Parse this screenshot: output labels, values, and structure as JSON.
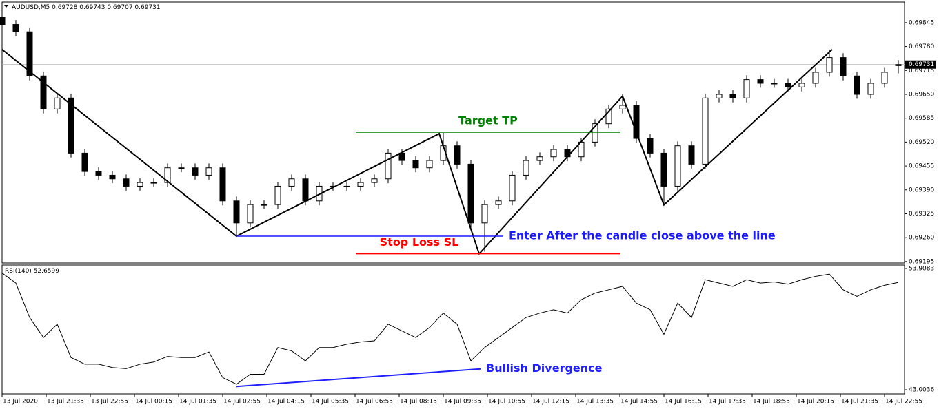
{
  "chart_data": [
    {
      "type": "candlestick",
      "title": "AUDUSD,M5",
      "x": [
        0,
        5,
        10,
        15,
        20,
        25,
        30,
        35,
        40,
        45,
        50,
        55,
        60,
        65,
        70,
        75,
        80,
        85,
        90,
        95,
        100,
        105,
        110,
        115,
        120,
        125,
        130,
        135,
        140,
        145,
        150,
        155,
        160,
        165,
        170,
        175,
        180,
        185,
        190,
        195,
        200,
        205,
        210,
        215,
        220,
        225,
        230,
        235,
        240,
        245,
        250,
        255,
        260,
        265,
        270,
        275,
        280,
        285,
        290,
        295,
        300,
        305,
        310,
        315,
        320,
        325
      ],
      "open": [
        0.6986,
        0.6984,
        0.6982,
        0.697,
        0.6961,
        0.6964,
        0.6949,
        0.6944,
        0.6943,
        0.6942,
        0.694,
        0.6941,
        0.6941,
        0.6945,
        0.6945,
        0.6943,
        0.6945,
        0.6936,
        0.693,
        0.6935,
        0.6935,
        0.694,
        0.6942,
        0.6936,
        0.694,
        0.694,
        0.694,
        0.6941,
        0.6942,
        0.6949,
        0.6947,
        0.6945,
        0.6947,
        0.6951,
        0.6946,
        0.693,
        0.6935,
        0.6936,
        0.6943,
        0.6947,
        0.6948,
        0.695,
        0.6948,
        0.6952,
        0.6957,
        0.6961,
        0.6962,
        0.6953,
        0.6949,
        0.694,
        0.6951,
        0.6946,
        0.6964,
        0.6965,
        0.6964,
        0.6969,
        0.6968,
        0.6968,
        0.6967,
        0.6968,
        0.6971,
        0.6975,
        0.697,
        0.6965,
        0.6968,
        0.69728
      ],
      "high": [
        0.69872,
        0.69852,
        0.69832,
        0.69712,
        0.69652,
        0.69652,
        0.69502,
        0.69452,
        0.69442,
        0.69432,
        0.69422,
        0.69422,
        0.69462,
        0.69462,
        0.69462,
        0.69462,
        0.69462,
        0.69372,
        0.69362,
        0.69362,
        0.69412,
        0.69432,
        0.69432,
        0.69412,
        0.69412,
        0.69412,
        0.69422,
        0.69432,
        0.69502,
        0.69502,
        0.69482,
        0.69482,
        0.69545,
        0.69522,
        0.69472,
        0.69362,
        0.69372,
        0.69442,
        0.69482,
        0.69492,
        0.69512,
        0.69512,
        0.69532,
        0.69582,
        0.69622,
        0.6965,
        0.69632,
        0.69542,
        0.69502,
        0.69522,
        0.69522,
        0.69652,
        0.69662,
        0.69662,
        0.69702,
        0.69702,
        0.69692,
        0.69692,
        0.69692,
        0.69722,
        0.69772,
        0.69762,
        0.69712,
        0.69692,
        0.69722,
        0.69743
      ],
      "low": [
        0.69828,
        0.69808,
        0.69688,
        0.69598,
        0.69598,
        0.69478,
        0.69428,
        0.69418,
        0.69408,
        0.69388,
        0.69388,
        0.69398,
        0.69398,
        0.69438,
        0.69418,
        0.69418,
        0.69348,
        0.69265,
        0.69288,
        0.69338,
        0.69338,
        0.69388,
        0.69348,
        0.69348,
        0.69388,
        0.69388,
        0.69388,
        0.69398,
        0.69408,
        0.69458,
        0.69438,
        0.69438,
        0.69458,
        0.69448,
        0.69288,
        0.69222,
        0.69338,
        0.69348,
        0.69418,
        0.69458,
        0.69468,
        0.69468,
        0.69468,
        0.69508,
        0.69558,
        0.69598,
        0.69518,
        0.69478,
        0.6935,
        0.69388,
        0.69448,
        0.69448,
        0.69628,
        0.69628,
        0.69628,
        0.69668,
        0.69668,
        0.69658,
        0.69658,
        0.69668,
        0.69698,
        0.69688,
        0.69638,
        0.69638,
        0.69668,
        0.69707
      ],
      "close": [
        0.6984,
        0.6982,
        0.697,
        0.6961,
        0.6964,
        0.6949,
        0.6944,
        0.6943,
        0.6942,
        0.694,
        0.6941,
        0.6941,
        0.6945,
        0.6945,
        0.6943,
        0.6945,
        0.6936,
        0.693,
        0.6935,
        0.6935,
        0.694,
        0.6942,
        0.6936,
        0.694,
        0.694,
        0.694,
        0.6941,
        0.6942,
        0.6949,
        0.6947,
        0.6945,
        0.6947,
        0.6951,
        0.6946,
        0.693,
        0.6935,
        0.6936,
        0.6943,
        0.6947,
        0.6948,
        0.695,
        0.6948,
        0.6952,
        0.6957,
        0.6961,
        0.6962,
        0.6953,
        0.6949,
        0.694,
        0.6951,
        0.6946,
        0.6964,
        0.6965,
        0.6964,
        0.6969,
        0.6968,
        0.6968,
        0.6967,
        0.6968,
        0.6971,
        0.6975,
        0.697,
        0.6965,
        0.6968,
        0.6971,
        0.69731
      ],
      "up_color": "#ffffff",
      "down_color": "#000000",
      "current_price": 0.69731,
      "xlim": [
        0,
        327.25
      ],
      "xticks": [
        {
          "value": 0,
          "label": "13 Jul 2020"
        },
        {
          "value": 16,
          "label": "13 Jul 21:35"
        },
        {
          "value": 32,
          "label": "13 Jul 22:55"
        },
        {
          "value": 48,
          "label": "14 Jul 00:15"
        },
        {
          "value": 64,
          "label": "14 Jul 01:35"
        },
        {
          "value": 80,
          "label": "14 Jul 02:55"
        },
        {
          "value": 96,
          "label": "14 Jul 04:15"
        },
        {
          "value": 112,
          "label": "14 Jul 05:35"
        },
        {
          "value": 128,
          "label": "14 Jul 06:55"
        },
        {
          "value": 144,
          "label": "14 Jul 08:15"
        },
        {
          "value": 160,
          "label": "14 Jul 09:35"
        },
        {
          "value": 176,
          "label": "14 Jul 10:55"
        },
        {
          "value": 192,
          "label": "14 Jul 12:15"
        },
        {
          "value": 208,
          "label": "14 Jul 13:35"
        },
        {
          "value": 224,
          "label": "14 Jul 14:55"
        },
        {
          "value": 240,
          "label": "14 Jul 16:15"
        },
        {
          "value": 256,
          "label": "14 Jul 17:35"
        },
        {
          "value": 272,
          "label": "14 Jul 18:55"
        },
        {
          "value": 288,
          "label": "14 Jul 20:15"
        },
        {
          "value": 304,
          "label": "14 Jul 21:35"
        },
        {
          "value": 320,
          "label": "14 Jul 22:55"
        }
      ],
      "ylim": [
        0.69191,
        0.69901
      ],
      "yticks": [
        0.69845,
        {
          "value": 0.6978,
          "label": "0.69780"
        },
        0.69715,
        {
          "value": 0.6965,
          "label": "0.69650"
        },
        0.69585,
        {
          "value": 0.6952,
          "label": "0.69520"
        },
        0.69455,
        {
          "value": 0.6939,
          "label": "0.69390"
        },
        0.69325,
        {
          "value": 0.6926,
          "label": "0.69260"
        },
        0.69195
      ],
      "zigzag": {
        "color": "#000000",
        "x": [
          0,
          85,
          158.5,
          173,
          225,
          240,
          301
        ],
        "y": [
          0.69772,
          0.69264,
          0.69543,
          0.69216,
          0.69645,
          0.69349,
          0.69772
        ]
      },
      "annotations": [
        {
          "text": "Target TP",
          "color": "#008000",
          "y": 0.69547,
          "x": [
            128.25,
            224.25
          ]
        },
        {
          "text": "Enter After the candle close above the line",
          "color": "#1a1aff",
          "y": 0.69264,
          "x": [
            85,
            181.75
          ]
        },
        {
          "text": "Stop Loss SL",
          "color": "#ff0000",
          "y": 0.69216,
          "x": [
            128.25,
            224.25
          ]
        }
      ]
    },
    {
      "type": "line",
      "title": "RSI(140)",
      "color": "#000000",
      "values": [
        53.5,
        52.6,
        49.5,
        47.7,
        48.9,
        45.9,
        45.3,
        45.3,
        45.0,
        44.9,
        45.3,
        45.5,
        46.0,
        45.9,
        45.9,
        46.4,
        44.1,
        43.5,
        44.4,
        44.4,
        46.8,
        46.5,
        45.6,
        46.8,
        46.8,
        47.1,
        47.3,
        47.4,
        48.9,
        48.3,
        47.7,
        48.6,
        49.9,
        48.9,
        45.6,
        46.8,
        47.7,
        48.6,
        49.5,
        49.9,
        50.2,
        49.9,
        51.1,
        51.7,
        52.0,
        52.3,
        50.8,
        50.2,
        48.0,
        50.8,
        49.5,
        52.9,
        52.6,
        52.3,
        52.9,
        52.6,
        52.7,
        52.5,
        52.9,
        53.2,
        53.4,
        52.0,
        51.4,
        52.0,
        52.4,
        52.6599
      ],
      "ylim": [
        43.0036,
        53.9083
      ],
      "yticks": [
        53.9083,
        43.0036
      ],
      "annotations": [
        {
          "text": "Bullish Divergence",
          "color": "#2020ff",
          "x": [
            85,
            173.5
          ],
          "y": [
            43.3,
            44.88
          ]
        }
      ]
    }
  ]
}
